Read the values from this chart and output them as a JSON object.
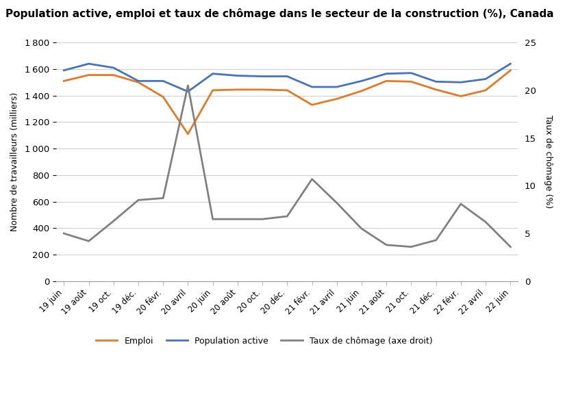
{
  "title": "Population active, emploi et taux de chômage dans le secteur de la construction (%), Canada",
  "ylabel_left": "Nombre de travailleurs (milliers)",
  "ylabel_right": "Taux de chômage (%)",
  "x_labels": [
    "19 juin",
    "19 août",
    "19 oct.",
    "19 déc.",
    "20 févr.",
    "20 avril",
    "20 juin",
    "20 août",
    "20 oct.",
    "20 déc.",
    "21 févr.",
    "21 avril",
    "21 juin",
    "21 août",
    "21 oct.",
    "21 déc.",
    "22 févr.",
    "22 avril",
    "22 juin"
  ],
  "emploi": [
    1510,
    1555,
    1555,
    1500,
    1390,
    1110,
    1440,
    1445,
    1445,
    1440,
    1330,
    1375,
    1435,
    1510,
    1505,
    1445,
    1395,
    1440,
    1590
  ],
  "population_active": [
    1590,
    1640,
    1610,
    1510,
    1510,
    1430,
    1565,
    1550,
    1545,
    1545,
    1465,
    1465,
    1510,
    1565,
    1570,
    1505,
    1500,
    1525,
    1640
  ],
  "chomage": [
    5.0,
    4.2,
    6.3,
    8.5,
    8.7,
    20.5,
    6.5,
    6.5,
    6.5,
    6.8,
    10.7,
    8.2,
    5.5,
    3.8,
    3.6,
    4.3,
    8.1,
    6.2,
    3.6
  ],
  "ylim_left": [
    0,
    1800
  ],
  "ylim_right": [
    0,
    25
  ],
  "yticks_left": [
    0,
    200,
    400,
    600,
    800,
    1000,
    1200,
    1400,
    1600,
    1800
  ],
  "yticks_right": [
    0,
    5,
    10,
    15,
    20,
    25
  ],
  "color_emploi": "#E87722",
  "color_population": "#4472C4",
  "color_chomage": "#808080",
  "legend_labels": [
    "Emploi",
    "Population active",
    "Taux de chômage (axe droit)"
  ],
  "background_color": "#FFFFFF",
  "title_fontsize": 11
}
